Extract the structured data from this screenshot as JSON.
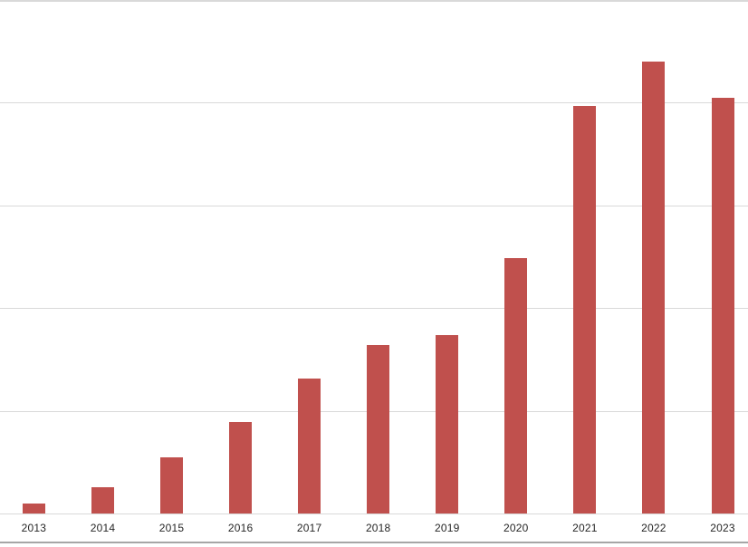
{
  "chart_data": {
    "type": "bar",
    "title": "",
    "xlabel": "",
    "ylabel": "",
    "categories": [
      "2013",
      "2014",
      "2015",
      "2016",
      "2017",
      "2018",
      "2019",
      "2020",
      "2021",
      "2022",
      "2023"
    ],
    "values": [
      0.1,
      0.26,
      0.55,
      0.89,
      1.31,
      1.64,
      1.74,
      2.49,
      3.97,
      4.4,
      4.05
    ],
    "ylim": [
      0,
      5
    ],
    "gridline_interval": 1,
    "grid": "horizontal",
    "y_tick_labels_visible": false,
    "legend_position": "none",
    "colors": {
      "bar": "#C0504D",
      "gridline": "#D9D9D9",
      "axis_line": "#D9D9D9",
      "bottom_border": "#A6A6A6",
      "tick_label": "#262626",
      "background": "#FFFFFF"
    }
  }
}
